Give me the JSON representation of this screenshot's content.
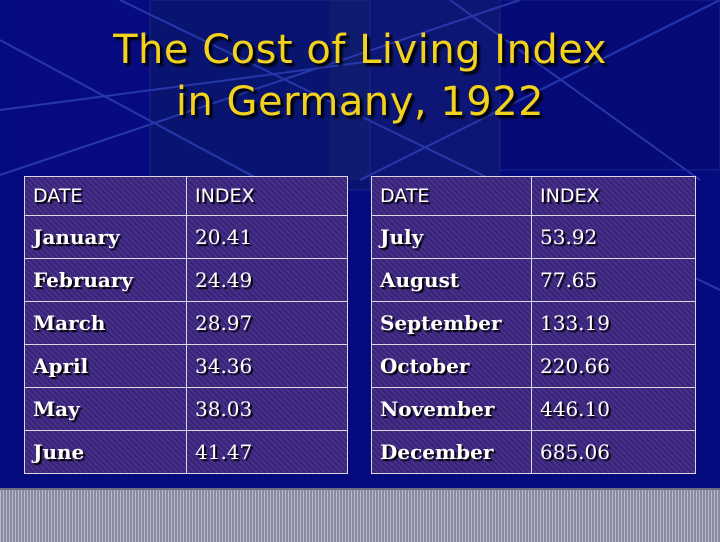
{
  "title": {
    "line1": "The Cost of Living Index",
    "line2": "in Germany, 1922"
  },
  "table_left": {
    "header": {
      "date": "DATE",
      "index": "INDEX"
    },
    "rows": [
      {
        "month": "January",
        "value": "20.41"
      },
      {
        "month": "February",
        "value": "24.49"
      },
      {
        "month": "March",
        "value": "28.97"
      },
      {
        "month": "April",
        "value": "34.36"
      },
      {
        "month": "May",
        "value": "38.03"
      },
      {
        "month": "June",
        "value": "41.47"
      }
    ]
  },
  "table_right": {
    "header": {
      "date": "DATE",
      "index": "INDEX"
    },
    "rows": [
      {
        "month": "July",
        "value": "53.92"
      },
      {
        "month": "August",
        "value": "77.65"
      },
      {
        "month": "September",
        "value": "133.19"
      },
      {
        "month": "October",
        "value": "220.66"
      },
      {
        "month": "November",
        "value": "446.10"
      },
      {
        "month": "December",
        "value": "685.06"
      }
    ]
  },
  "colors": {
    "background": "#050878",
    "title": "#f2d21c",
    "table_fill": "#4a2f86",
    "text": "#ffffff"
  }
}
